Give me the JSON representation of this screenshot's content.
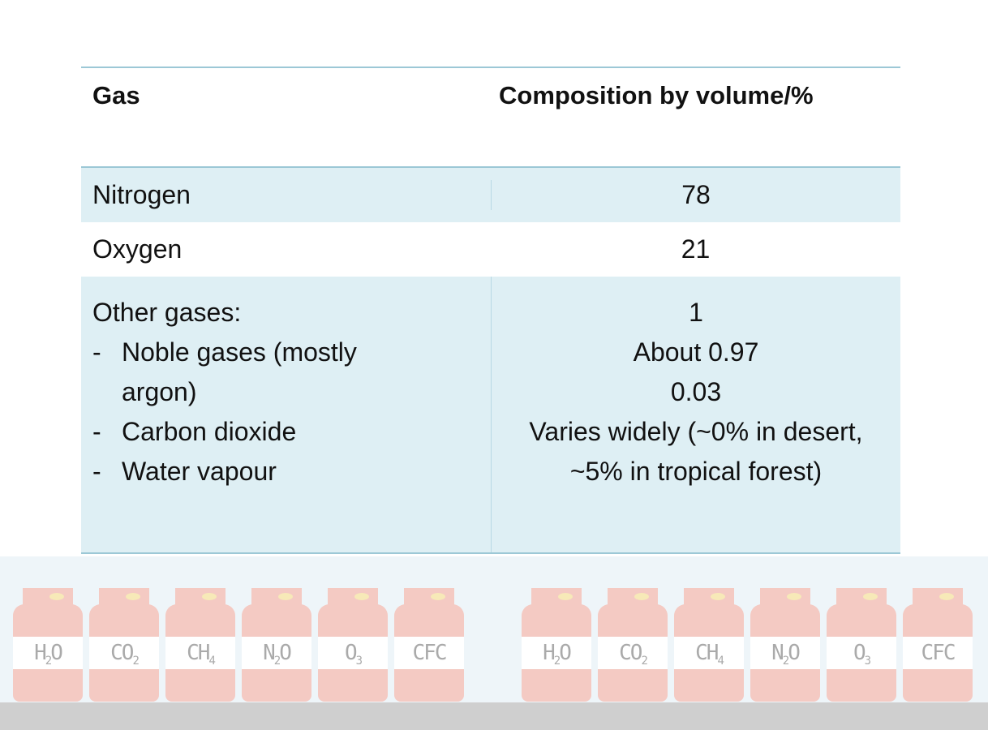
{
  "table": {
    "headers": [
      "Gas",
      "Composition by volume/%"
    ],
    "rows": [
      {
        "gas": "Nitrogen",
        "value": "78"
      },
      {
        "gas": "Oxygen",
        "value": "21"
      }
    ],
    "other": {
      "gas": "Other gases:",
      "value": "1",
      "items": [
        {
          "dash": "-",
          "name_line1": "Noble gases (mostly",
          "name_line2": "argon)",
          "value": "About 0.97"
        },
        {
          "dash": "-",
          "name": "Carbon dioxide",
          "value": "0.03"
        },
        {
          "dash": "-",
          "name": "Water vapour",
          "value_line1": "Varies widely (~0% in desert,",
          "value_line2": "~5% in tropical forest)"
        }
      ]
    }
  },
  "cylinders": [
    {
      "base": "H",
      "sub": "2",
      "tail": "O"
    },
    {
      "base": "CO",
      "sub": "2",
      "tail": ""
    },
    {
      "base": "CH",
      "sub": "4",
      "tail": ""
    },
    {
      "base": "N",
      "sub": "2",
      "tail": "O"
    },
    {
      "base": "O",
      "sub": "3",
      "tail": ""
    },
    {
      "base": "CFC",
      "sub": "",
      "tail": ""
    }
  ],
  "colors": {
    "row_fill": "#deeff4",
    "rule": "#9cc8d6",
    "cylinder": "#f4cac3"
  }
}
